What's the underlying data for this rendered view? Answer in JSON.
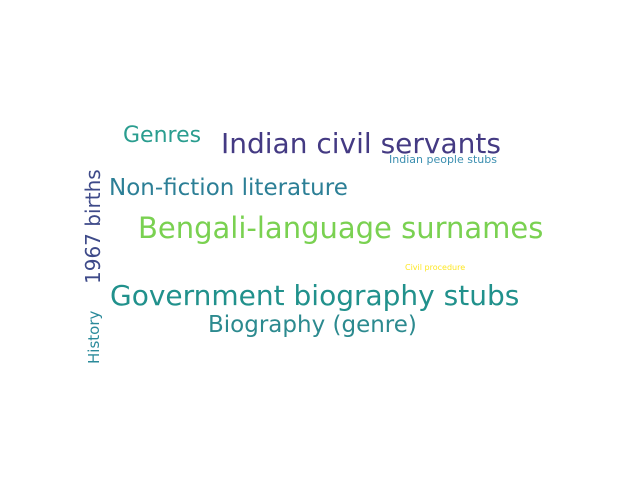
{
  "words": [
    {
      "id": "genres",
      "text": "Genres",
      "color": "#2a9d8f"
    },
    {
      "id": "indian-civil-servants",
      "text": "Indian civil servants",
      "color": "#443a83"
    },
    {
      "id": "indian-people-stubs",
      "text": "Indian people stubs",
      "color": "#3b8fb0"
    },
    {
      "id": "non-fiction-literature",
      "text": "Non-fiction literature",
      "color": "#2c7f96"
    },
    {
      "id": "bengali-language-surnames",
      "text": "Bengali-language surnames",
      "color": "#7ad151"
    },
    {
      "id": "civil-procedure",
      "text": "Civil procedure",
      "color": "#fde725"
    },
    {
      "id": "government-biography-stubs",
      "text": "Government biography stubs",
      "color": "#21918c"
    },
    {
      "id": "biography-genre",
      "text": "Biography (genre)",
      "color": "#2c8a8f"
    },
    {
      "id": "1967-births",
      "text": "1967 births",
      "color": "#3e4a89"
    },
    {
      "id": "history",
      "text": "History",
      "color": "#2a8a9a"
    }
  ]
}
